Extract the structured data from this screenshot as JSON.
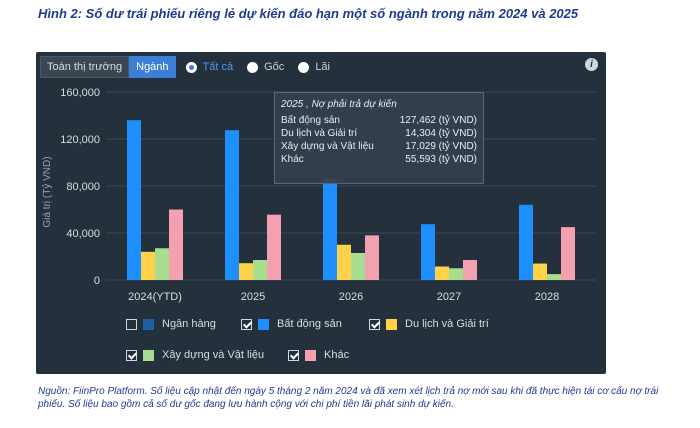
{
  "figure": {
    "title": "Hình 2: Số dư trái phiếu riêng lẻ dự kiến đáo hạn một số ngành trong năm 2024 và 2025",
    "source": "Nguồn: FiinPro Platform. Số liệu cập nhật đến ngày 5 tháng 2 năm 2024 và đã xem xét lịch trả nợ mới sau khi đã thực hiện tái cơ cấu nợ trái phiếu. Số liệu bao gồm cả số dư gốc đang lưu hành cộng với chi phí tiền lãi phát sinh dự kiến."
  },
  "toolbar": {
    "tab_market": "Toàn thị trường",
    "tab_sector": "Ngành",
    "radio_all": "Tất cả",
    "radio_principal": "Gốc",
    "radio_interest": "Lãi",
    "info_icon": "i"
  },
  "tooltip": {
    "title": "2025 , Nợ phải trả dự kiến",
    "rows": [
      {
        "label": "Bất động sản",
        "value": "127,462 (tỷ VND)"
      },
      {
        "label": "Du lịch và Giải trí",
        "value": "14,304 (tỷ VND)"
      },
      {
        "label": "Xây dựng và Vật liệu",
        "value": "17,029 (tỷ VND)"
      },
      {
        "label": "Khác",
        "value": "55,593 (tỷ VND)"
      }
    ]
  },
  "legend": [
    {
      "label": "Ngân hàng",
      "checked": false,
      "color": "#1f5fa8"
    },
    {
      "label": "Bất động sản",
      "checked": true,
      "color": "#1e8fff"
    },
    {
      "label": "Du lịch và Giải trí",
      "checked": true,
      "color": "#ffd24a"
    },
    {
      "label": "Xây dựng và Vật liệu",
      "checked": true,
      "color": "#a6dd8f"
    },
    {
      "label": "Khác",
      "checked": true,
      "color": "#f3a0b0"
    }
  ],
  "chart_data": {
    "type": "bar",
    "ylabel": "Giá trị (Tỷ VND)",
    "ylim": [
      0,
      160000
    ],
    "yticks": [
      0,
      40000,
      80000,
      120000,
      160000
    ],
    "ytick_labels": [
      "0",
      "40,000",
      "80,000",
      "120,000",
      "160,000"
    ],
    "categories": [
      "2024(YTD)",
      "2025",
      "2026",
      "2027",
      "2028"
    ],
    "series": [
      {
        "name": "Bất động sản",
        "color": "#1e8fff",
        "values": [
          136000,
          127462,
          87000,
          47500,
          64000
        ]
      },
      {
        "name": "Du lịch và Giải trí",
        "color": "#ffd24a",
        "values": [
          24000,
          14304,
          30000,
          11500,
          14000
        ]
      },
      {
        "name": "Xây dựng và Vật liệu",
        "color": "#a6dd8f",
        "values": [
          27000,
          17029,
          23000,
          10000,
          5000
        ]
      },
      {
        "name": "Khác",
        "color": "#f3a0b0",
        "values": [
          60000,
          55593,
          38000,
          17000,
          45000
        ]
      }
    ],
    "grid": true
  }
}
